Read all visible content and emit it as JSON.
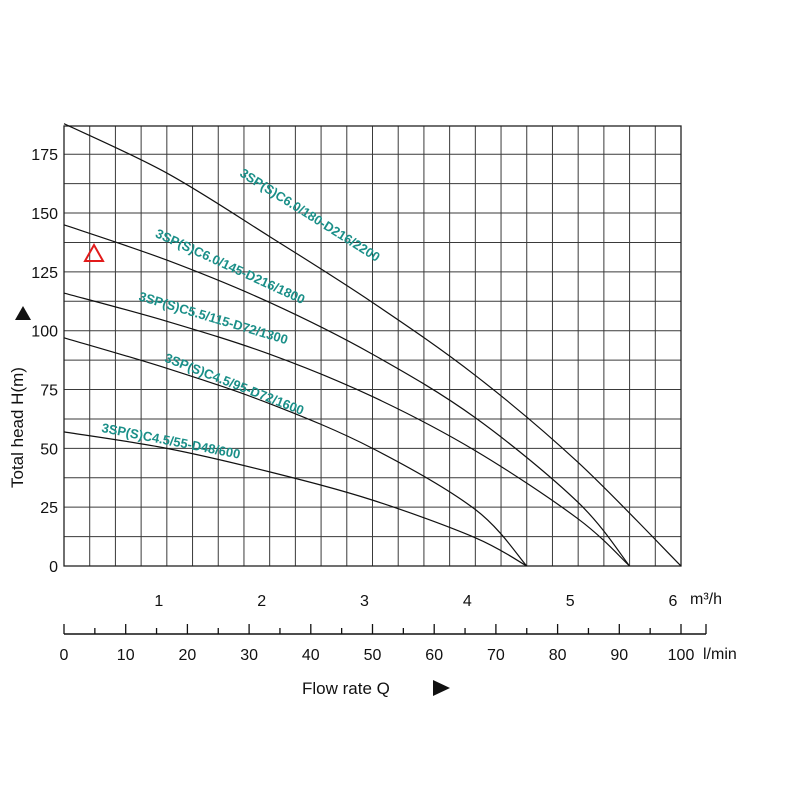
{
  "chart_data": {
    "type": "line",
    "title": "",
    "ylabel": "Total head H(m)",
    "xlabel": "Flow rate Q",
    "x_unit": "m³/h",
    "x2_unit": "l/min",
    "ylim": [
      0,
      187
    ],
    "xlim": [
      0,
      6
    ],
    "y_ticks": [
      "0",
      "25",
      "50",
      "75",
      "100",
      "125",
      "150",
      "175"
    ],
    "x_ticks": [
      "1",
      "2",
      "3",
      "4",
      "5",
      "6"
    ],
    "x2_ticks": [
      "0",
      "10",
      "20",
      "30",
      "40",
      "50",
      "60",
      "70",
      "80",
      "90",
      "100"
    ],
    "grid": true,
    "marker_icon": "warning-triangle-icon",
    "accent_color": "#1a8f88",
    "series": [
      {
        "name": "3SP(S)C6.0/180-D216/2200",
        "x": [
          0,
          1,
          2,
          3,
          4,
          5,
          6
        ],
        "y": [
          188,
          167,
          140,
          112,
          81,
          44,
          0
        ]
      },
      {
        "name": "3SP(S)C6.0/145-D216/1800",
        "x": [
          0,
          1,
          2,
          3,
          4,
          5,
          5.5
        ],
        "y": [
          145,
          130,
          112,
          90,
          63,
          27,
          0
        ]
      },
      {
        "name": "3SP(S)C5.5/115-D72/1300",
        "x": [
          0,
          1,
          2,
          3,
          4,
          5,
          5.5
        ],
        "y": [
          116,
          104,
          90,
          72,
          49,
          20,
          0
        ]
      },
      {
        "name": "3SP(S)C4.5/95-D72/1600",
        "x": [
          0,
          1,
          2,
          3,
          4,
          4.5
        ],
        "y": [
          97,
          84,
          69,
          50,
          24,
          0
        ]
      },
      {
        "name": "3SP(S)C4.5/55-D48/600",
        "x": [
          0,
          1,
          2,
          3,
          4,
          4.5
        ],
        "y": [
          57,
          50,
          40,
          28,
          12,
          0
        ]
      }
    ]
  }
}
